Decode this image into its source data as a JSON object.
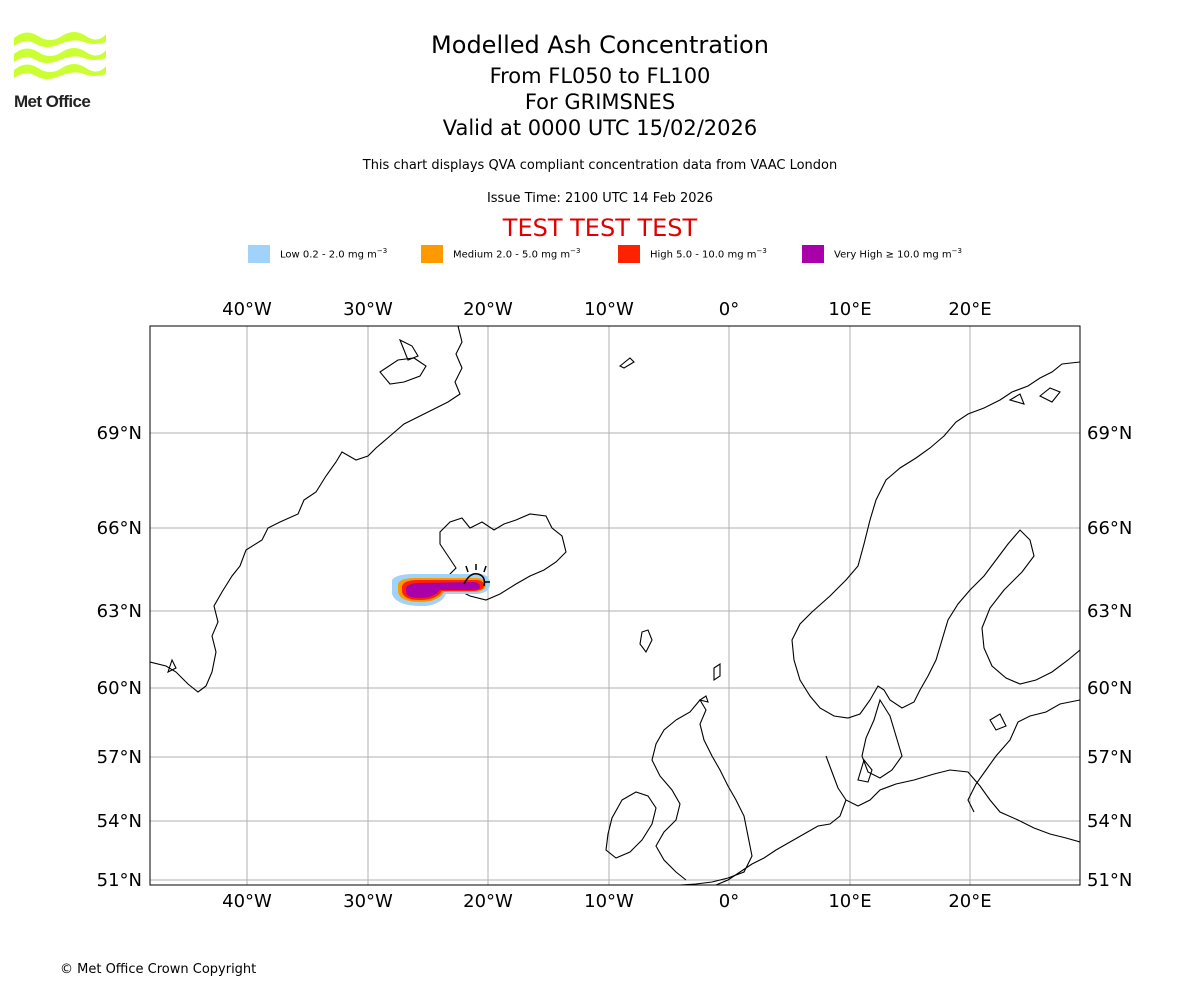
{
  "header": {
    "title": "Modelled Ash Concentration",
    "flight_levels": "From FL050 to FL100",
    "volcano": "For GRIMSNES",
    "valid_time": "Valid at 0000 UTC 15/02/2026",
    "description": "This chart displays QVA compliant concentration data from VAAC London",
    "issue_time": "Issue Time: 2100 UTC 14 Feb 2026",
    "test_banner": "TEST TEST TEST"
  },
  "logo": {
    "text": "Met Office",
    "color": "#ccff33"
  },
  "legend": {
    "unit": "mg m",
    "unit_exponent": "−3",
    "items": [
      {
        "label": "Low 0.2 - 2.0",
        "color": "#a0d2fa"
      },
      {
        "label": "Medium 2.0 - 5.0",
        "color": "#ff9900"
      },
      {
        "label": "High 5.0 - 10.0",
        "color": "#ff2200"
      },
      {
        "label": "Very High  ≥  10.0",
        "color": "#aa00aa"
      }
    ]
  },
  "map": {
    "longitude_labels": [
      "40°W",
      "30°W",
      "20°W",
      "10°W",
      "0°",
      "10°E",
      "20°E"
    ],
    "latitude_labels": [
      "69°N",
      "66°N",
      "63°N",
      "60°N",
      "57°N",
      "54°N",
      "51°N"
    ]
  },
  "footer": {
    "copyright": "© Met Office Crown Copyright"
  }
}
